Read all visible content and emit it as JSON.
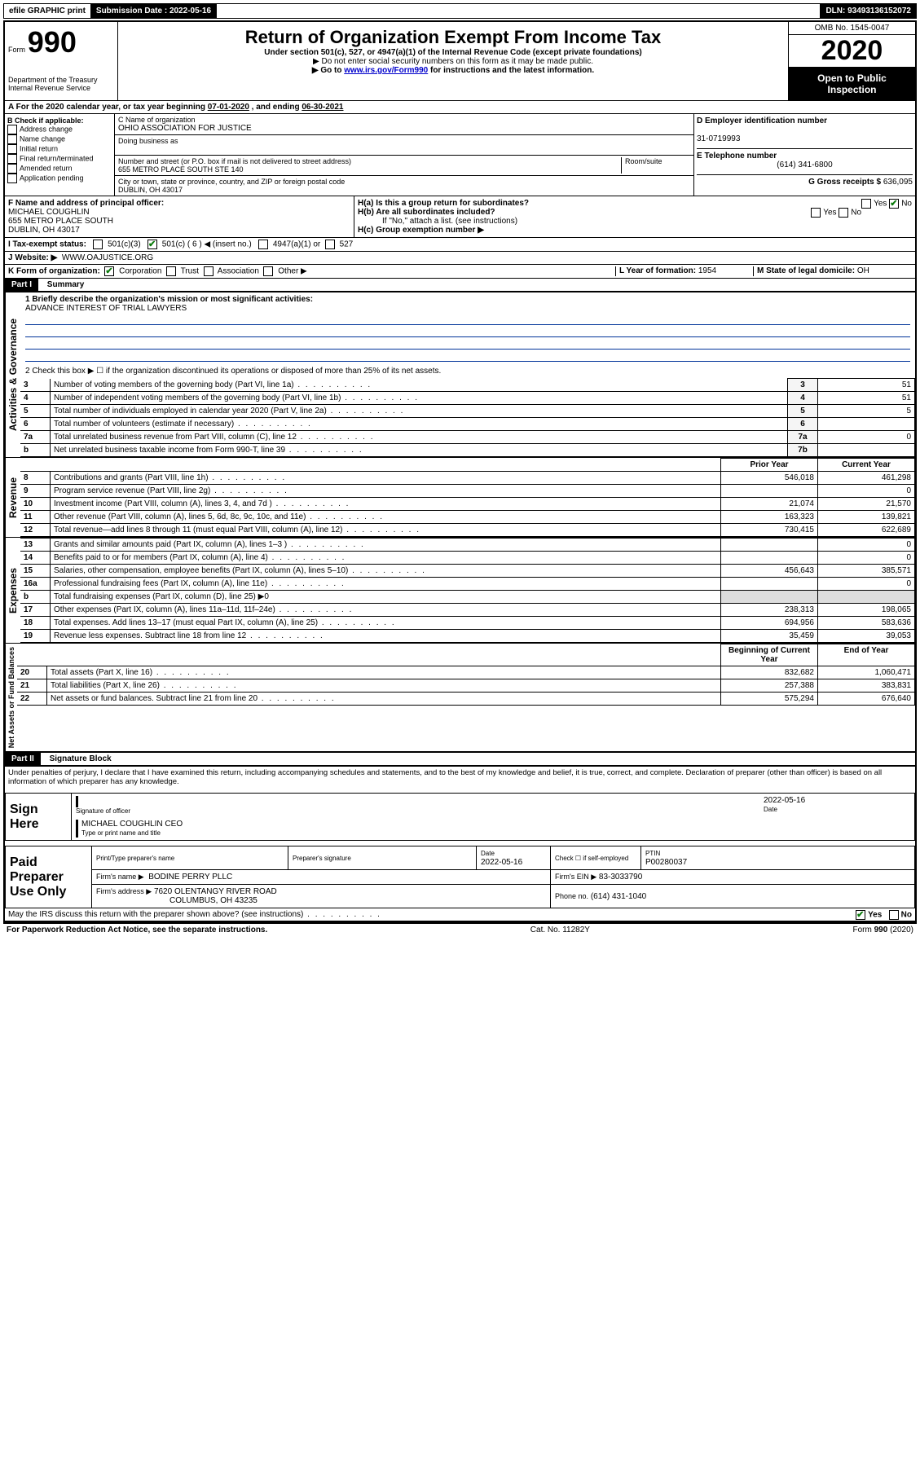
{
  "topbar": {
    "efile": "efile GRAPHIC print",
    "submission_label": "Submission Date :",
    "submission_date": "2022-05-16",
    "dln_label": "DLN:",
    "dln": "93493136152072"
  },
  "header": {
    "form_prefix": "Form",
    "form_no": "990",
    "dept": "Department of the Treasury\nInternal Revenue Service",
    "title": "Return of Organization Exempt From Income Tax",
    "subtitle": "Under section 501(c), 527, or 4947(a)(1) of the Internal Revenue Code (except private foundations)",
    "note1": "▶ Do not enter social security numbers on this form as it may be made public.",
    "note2_pre": "▶ Go to ",
    "note2_link": "www.irs.gov/Form990",
    "note2_post": " for instructions and the latest information.",
    "omb": "OMB No. 1545-0047",
    "year": "2020",
    "open": "Open to Public Inspection"
  },
  "row_a": {
    "text_pre": "A For the 2020 calendar year, or tax year beginning ",
    "begin": "07-01-2020",
    "mid": " , and ending ",
    "end": "06-30-2021"
  },
  "box_b": {
    "label": "B Check if applicable:",
    "items": [
      "Address change",
      "Name change",
      "Initial return",
      "Final return/terminated",
      "Amended return",
      "Application pending"
    ]
  },
  "box_c": {
    "name_label": "C Name of organization",
    "name": "OHIO ASSOCIATION FOR JUSTICE",
    "dba_label": "Doing business as",
    "street_label": "Number and street (or P.O. box if mail is not delivered to street address)",
    "street": "655 METRO PLACE SOUTH STE 140",
    "room_label": "Room/suite",
    "city_label": "City or town, state or province, country, and ZIP or foreign postal code",
    "city": "DUBLIN, OH  43017"
  },
  "box_d": {
    "label": "D Employer identification number",
    "value": "31-0719993"
  },
  "box_e": {
    "label": "E Telephone number",
    "value": "(614) 341-6800"
  },
  "box_g": {
    "label": "G Gross receipts $",
    "value": "636,095"
  },
  "box_f": {
    "label": "F Name and address of principal officer:",
    "name": "MICHAEL COUGHLIN",
    "addr1": "655 METRO PLACE SOUTH",
    "addr2": "DUBLIN, OH  43017"
  },
  "box_h": {
    "ha": "H(a)  Is this a group return for subordinates?",
    "hb": "H(b)  Are all subordinates included?",
    "hb_note": "If \"No,\" attach a list. (see instructions)",
    "hc": "H(c)  Group exemption number ▶"
  },
  "tax_status": {
    "label": "I  Tax-exempt status:",
    "c3": "501(c)(3)",
    "c": "501(c) ( 6 ) ◀ (insert no.)",
    "a4947": "4947(a)(1) or",
    "s527": "527"
  },
  "website": {
    "label": "J  Website: ▶",
    "value": "WWW.OAJUSTICE.ORG"
  },
  "box_k": {
    "label": "K Form of organization:",
    "corp": "Corporation",
    "trust": "Trust",
    "assoc": "Association",
    "other": "Other ▶"
  },
  "box_l": {
    "label": "L Year of formation:",
    "value": "1954"
  },
  "box_m": {
    "label": "M State of legal domicile:",
    "value": "OH"
  },
  "part1": {
    "header": "Part I",
    "title": "Summary",
    "q1_label": "1  Briefly describe the organization's mission or most significant activities:",
    "q1_val": "ADVANCE INTEREST OF TRIAL LAWYERS",
    "q2": "2   Check this box ▶ ☐  if the organization discontinued its operations or disposed of more than 25% of its net assets.",
    "rows_ag": [
      {
        "n": "3",
        "t": "Number of voting members of the governing body (Part VI, line 1a)",
        "box": "3",
        "v": "51"
      },
      {
        "n": "4",
        "t": "Number of independent voting members of the governing body (Part VI, line 1b)",
        "box": "4",
        "v": "51"
      },
      {
        "n": "5",
        "t": "Total number of individuals employed in calendar year 2020 (Part V, line 2a)",
        "box": "5",
        "v": "5"
      },
      {
        "n": "6",
        "t": "Total number of volunteers (estimate if necessary)",
        "box": "6",
        "v": ""
      },
      {
        "n": "7a",
        "t": "Total unrelated business revenue from Part VIII, column (C), line 12",
        "box": "7a",
        "v": "0"
      },
      {
        "n": "b",
        "t": "Net unrelated business taxable income from Form 990-T, line 39",
        "box": "7b",
        "v": ""
      }
    ],
    "col_prior": "Prior Year",
    "col_current": "Current Year",
    "revenue_rows": [
      {
        "n": "8",
        "t": "Contributions and grants (Part VIII, line 1h)",
        "p": "546,018",
        "c": "461,298"
      },
      {
        "n": "9",
        "t": "Program service revenue (Part VIII, line 2g)",
        "p": "",
        "c": "0"
      },
      {
        "n": "10",
        "t": "Investment income (Part VIII, column (A), lines 3, 4, and 7d )",
        "p": "21,074",
        "c": "21,570"
      },
      {
        "n": "11",
        "t": "Other revenue (Part VIII, column (A), lines 5, 6d, 8c, 9c, 10c, and 11e)",
        "p": "163,323",
        "c": "139,821"
      },
      {
        "n": "12",
        "t": "Total revenue—add lines 8 through 11 (must equal Part VIII, column (A), line 12)",
        "p": "730,415",
        "c": "622,689"
      }
    ],
    "expense_rows": [
      {
        "n": "13",
        "t": "Grants and similar amounts paid (Part IX, column (A), lines 1–3 )",
        "p": "",
        "c": "0"
      },
      {
        "n": "14",
        "t": "Benefits paid to or for members (Part IX, column (A), line 4)",
        "p": "",
        "c": "0"
      },
      {
        "n": "15",
        "t": "Salaries, other compensation, employee benefits (Part IX, column (A), lines 5–10)",
        "p": "456,643",
        "c": "385,571"
      },
      {
        "n": "16a",
        "t": "Professional fundraising fees (Part IX, column (A), line 11e)",
        "p": "",
        "c": "0"
      },
      {
        "n": "b",
        "t": "Total fundraising expenses (Part IX, column (D), line 25) ▶0",
        "p": null,
        "c": null
      },
      {
        "n": "17",
        "t": "Other expenses (Part IX, column (A), lines 11a–11d, 11f–24e)",
        "p": "238,313",
        "c": "198,065"
      },
      {
        "n": "18",
        "t": "Total expenses. Add lines 13–17 (must equal Part IX, column (A), line 25)",
        "p": "694,956",
        "c": "583,636"
      },
      {
        "n": "19",
        "t": "Revenue less expenses. Subtract line 18 from line 12",
        "p": "35,459",
        "c": "39,053"
      }
    ],
    "col_begin": "Beginning of Current Year",
    "col_end": "End of Year",
    "net_rows": [
      {
        "n": "20",
        "t": "Total assets (Part X, line 16)",
        "p": "832,682",
        "c": "1,060,471"
      },
      {
        "n": "21",
        "t": "Total liabilities (Part X, line 26)",
        "p": "257,388",
        "c": "383,831"
      },
      {
        "n": "22",
        "t": "Net assets or fund balances. Subtract line 21 from line 20",
        "p": "575,294",
        "c": "676,640"
      }
    ],
    "vlab_ag": "Activities & Governance",
    "vlab_rev": "Revenue",
    "vlab_exp": "Expenses",
    "vlab_net": "Net Assets or Fund Balances"
  },
  "part2": {
    "header": "Part II",
    "title": "Signature Block",
    "perjury": "Under penalties of perjury, I declare that I have examined this return, including accompanying schedules and statements, and to the best of my knowledge and belief, it is true, correct, and complete. Declaration of preparer (other than officer) is based on all information of which preparer has any knowledge."
  },
  "sign": {
    "here": "Sign Here",
    "sig_officer": "Signature of officer",
    "date_label": "Date",
    "date": "2022-05-16",
    "name": "MICHAEL COUGHLIN  CEO",
    "name_label": "Type or print name and title"
  },
  "paid": {
    "label": "Paid Preparer Use Only",
    "col1": "Print/Type preparer's name",
    "col2": "Preparer's signature",
    "col3_label": "Date",
    "col3": "2022-05-16",
    "col4": "Check ☐ if self-employed",
    "ptin_label": "PTIN",
    "ptin": "P00280037",
    "firm_name_label": "Firm's name    ▶",
    "firm_name": "BODINE PERRY PLLC",
    "firm_ein_label": "Firm's EIN ▶",
    "firm_ein": "83-3033790",
    "firm_addr_label": "Firm's address ▶",
    "firm_addr1": "7620 OLENTANGY RIVER ROAD",
    "firm_addr2": "COLUMBUS, OH  43235",
    "phone_label": "Phone no.",
    "phone": "(614) 431-1040"
  },
  "irs_discuss": "May the IRS discuss this return with the preparer shown above? (see instructions)",
  "footer": {
    "left": "For Paperwork Reduction Act Notice, see the separate instructions.",
    "mid": "Cat. No. 11282Y",
    "right": "Form 990 (2020)"
  },
  "yes": "Yes",
  "no": "No"
}
